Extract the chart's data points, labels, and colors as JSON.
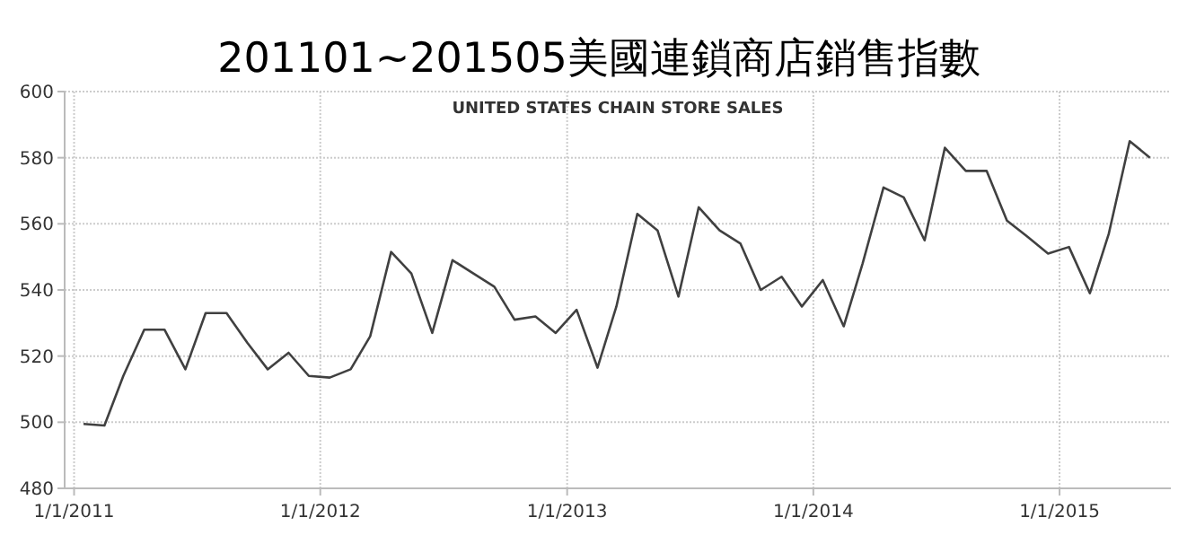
{
  "chart_data": {
    "type": "line",
    "title": "201101~201505美國連鎖商店銷售指數",
    "subtitle": "UNITED STATES CHAIN STORE SALES",
    "x": [
      "2011-01-15",
      "2011-02-15",
      "2011-03-15",
      "2011-04-15",
      "2011-05-15",
      "2011-06-15",
      "2011-07-15",
      "2011-08-15",
      "2011-09-15",
      "2011-10-15",
      "2011-11-15",
      "2011-12-15",
      "2012-01-15",
      "2012-02-15",
      "2012-03-15",
      "2012-04-15",
      "2012-05-15",
      "2012-06-15",
      "2012-07-15",
      "2012-08-15",
      "2012-09-15",
      "2012-10-15",
      "2012-11-15",
      "2012-12-15",
      "2013-01-15",
      "2013-02-15",
      "2013-03-15",
      "2013-04-15",
      "2013-05-15",
      "2013-06-15",
      "2013-07-15",
      "2013-08-15",
      "2013-09-15",
      "2013-10-15",
      "2013-11-15",
      "2013-12-15",
      "2014-01-15",
      "2014-02-15",
      "2014-03-15",
      "2014-04-15",
      "2014-05-15",
      "2014-06-15",
      "2014-07-15",
      "2014-08-15",
      "2014-09-15",
      "2014-10-15",
      "2014-11-15",
      "2014-12-15",
      "2015-01-15",
      "2015-02-15",
      "2015-03-15",
      "2015-04-15",
      "2015-05-15"
    ],
    "series": [
      {
        "color": "#404040",
        "values": [
          499.5,
          499,
          514,
          528,
          528,
          516,
          533,
          533,
          524,
          516,
          521,
          514,
          513.5,
          516,
          526,
          551.5,
          545,
          527,
          549,
          545,
          541,
          531,
          532,
          527,
          534,
          516.5,
          535,
          563,
          558,
          538,
          565,
          558,
          554,
          540,
          544,
          535,
          543,
          529,
          548,
          571,
          568,
          555,
          583,
          576,
          576,
          561,
          556,
          551,
          553,
          539,
          557,
          585,
          580
        ]
      }
    ],
    "xlim": [
      "2010-12-18",
      "2015-06-15"
    ],
    "xticks": [
      {
        "value": "2011-01-01",
        "label": "1/1/2011"
      },
      {
        "value": "2012-01-01",
        "label": "1/1/2012"
      },
      {
        "value": "2013-01-01",
        "label": "1/1/2013"
      },
      {
        "value": "2014-01-01",
        "label": "1/1/2014"
      },
      {
        "value": "2015-01-01",
        "label": "1/1/2015"
      }
    ],
    "ylim": [
      480,
      600
    ],
    "yticks": [
      480,
      500,
      520,
      540,
      560,
      580,
      600
    ],
    "grid": true,
    "marker": "none",
    "line_style": "solid"
  }
}
